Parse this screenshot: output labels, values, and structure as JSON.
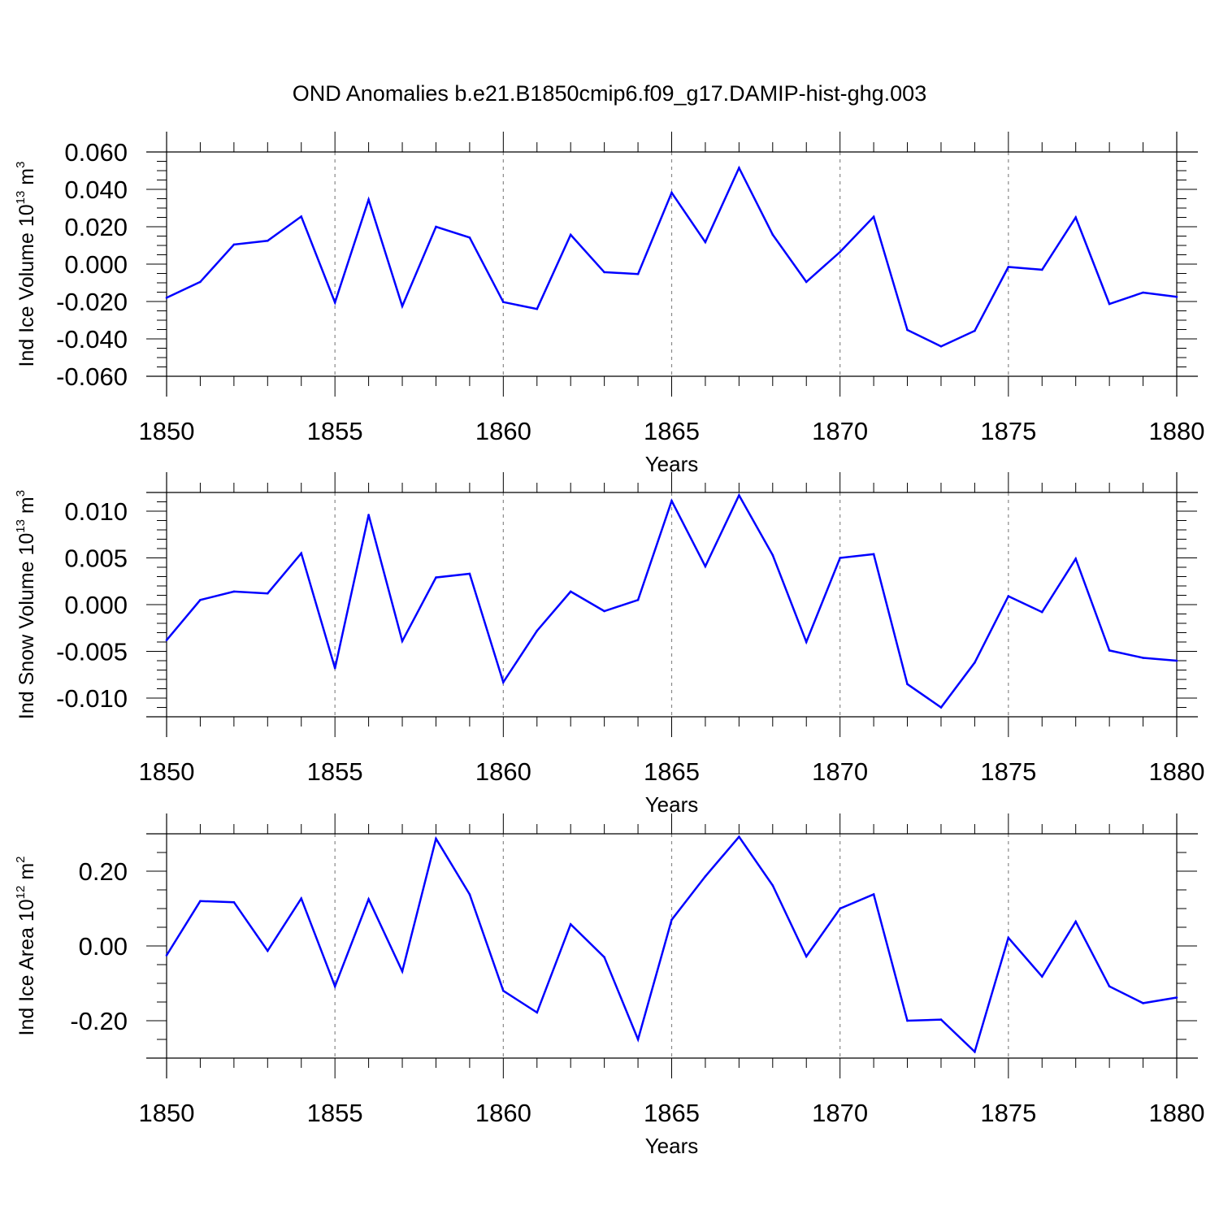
{
  "title": "OND Anomalies b.e21.B1850cmip6.f09_g17.DAMIP-hist-ghg.003",
  "line_color": "#0000ff",
  "chart_data": [
    {
      "type": "line",
      "ylabel_main": "Ind Ice Volume 10",
      "ylabel_exp": "13",
      "ylabel_unit": " m",
      "ylabel_unit_exp": "3",
      "xlabel": "Years",
      "xlim": [
        1850,
        1880
      ],
      "ylim": [
        -0.06,
        0.06
      ],
      "xticks": [
        1850,
        1855,
        1860,
        1865,
        1870,
        1875,
        1880
      ],
      "xtick_labels": [
        "1850",
        "1855",
        "1860",
        "1865",
        "1870",
        "1875",
        "1880"
      ],
      "yticks": [
        0.06,
        0.04,
        0.02,
        0.0,
        -0.02,
        -0.04,
        -0.06
      ],
      "ytick_labels": [
        "0.060",
        "0.040",
        "0.020",
        "0.000",
        "-0.020",
        "-0.040",
        "-0.060"
      ],
      "ymin_ticks": [
        -0.055,
        -0.05,
        -0.045,
        -0.035,
        -0.03,
        -0.025,
        -0.015,
        -0.01,
        -0.005,
        0.005,
        0.01,
        0.015,
        0.025,
        0.03,
        0.035,
        0.045,
        0.05,
        0.055
      ],
      "grid_x": [
        1855,
        1860,
        1865,
        1870,
        1875
      ],
      "x": [
        1850,
        1851,
        1852,
        1853,
        1854,
        1855,
        1856,
        1857,
        1858,
        1859,
        1860,
        1861,
        1862,
        1863,
        1864,
        1865,
        1866,
        1867,
        1868,
        1869,
        1870,
        1871,
        1872,
        1873,
        1874,
        1875,
        1876,
        1877,
        1878,
        1879,
        1880
      ],
      "y": [
        -0.018,
        -0.0095,
        0.0105,
        0.0125,
        0.0255,
        -0.0205,
        0.0345,
        -0.0225,
        0.02,
        0.0142,
        -0.0203,
        -0.024,
        0.0157,
        -0.0043,
        -0.0053,
        0.0382,
        0.0118,
        0.0515,
        0.0158,
        -0.0095,
        0.0065,
        0.0253,
        -0.0352,
        -0.044,
        -0.0357,
        -0.0015,
        -0.003,
        0.025,
        -0.0213,
        -0.0152,
        -0.0175
      ]
    },
    {
      "type": "line",
      "ylabel_main": "Ind Snow Volume 10",
      "ylabel_exp": "13",
      "ylabel_unit": " m",
      "ylabel_unit_exp": "3",
      "xlabel": "Years",
      "xlim": [
        1850,
        1880
      ],
      "ylim": [
        -0.012,
        0.012
      ],
      "xticks": [
        1850,
        1855,
        1860,
        1865,
        1870,
        1875,
        1880
      ],
      "xtick_labels": [
        "1850",
        "1855",
        "1860",
        "1865",
        "1870",
        "1875",
        "1880"
      ],
      "yticks": [
        0.01,
        0.005,
        0.0,
        -0.005,
        -0.01
      ],
      "ytick_labels": [
        "0.010",
        "0.005",
        "0.000",
        "-0.005",
        "-0.010"
      ],
      "ymin_ticks": [
        -0.011,
        -0.009,
        -0.008,
        -0.007,
        -0.006,
        -0.004,
        -0.003,
        -0.002,
        -0.001,
        0.001,
        0.002,
        0.003,
        0.004,
        0.006,
        0.007,
        0.008,
        0.009,
        0.011
      ],
      "grid_x": [
        1855,
        1860,
        1865,
        1870,
        1875
      ],
      "x": [
        1850,
        1851,
        1852,
        1853,
        1854,
        1855,
        1856,
        1857,
        1858,
        1859,
        1860,
        1861,
        1862,
        1863,
        1864,
        1865,
        1866,
        1867,
        1868,
        1869,
        1870,
        1871,
        1872,
        1873,
        1874,
        1875,
        1876,
        1877,
        1878,
        1879,
        1880
      ],
      "y": [
        -0.0038,
        0.0005,
        0.0014,
        0.0012,
        0.0055,
        -0.0068,
        0.0096,
        -0.0039,
        0.0029,
        0.0033,
        -0.0083,
        -0.0028,
        0.0014,
        -0.0007,
        0.0005,
        0.0111,
        0.0041,
        0.0117,
        0.0053,
        -0.004,
        0.005,
        0.0054,
        -0.0085,
        -0.011,
        -0.0062,
        0.0009,
        -0.0008,
        0.0049,
        -0.0049,
        -0.0057,
        -0.006
      ]
    },
    {
      "type": "line",
      "ylabel_main": "Ind Ice Area 10",
      "ylabel_exp": "12",
      "ylabel_unit": " m",
      "ylabel_unit_exp": "2",
      "xlabel": "Years",
      "xlim": [
        1850,
        1880
      ],
      "ylim": [
        -0.3,
        0.3
      ],
      "xticks": [
        1850,
        1855,
        1860,
        1865,
        1870,
        1875,
        1880
      ],
      "xtick_labels": [
        "1850",
        "1855",
        "1860",
        "1865",
        "1870",
        "1875",
        "1880"
      ],
      "yticks": [
        0.2,
        0.0,
        -0.2
      ],
      "ytick_labels": [
        "0.20",
        "0.00",
        "-0.20"
      ],
      "ymin_ticks": [
        -0.25,
        -0.15,
        -0.1,
        -0.05,
        0.05,
        0.1,
        0.15,
        0.25
      ],
      "grid_x": [
        1855,
        1860,
        1865,
        1870,
        1875
      ],
      "x": [
        1850,
        1851,
        1852,
        1853,
        1854,
        1855,
        1856,
        1857,
        1858,
        1859,
        1860,
        1861,
        1862,
        1863,
        1864,
        1865,
        1866,
        1867,
        1868,
        1869,
        1870,
        1871,
        1872,
        1873,
        1874,
        1875,
        1876,
        1877,
        1878,
        1879,
        1880
      ],
      "y": [
        -0.025,
        0.12,
        0.117,
        -0.013,
        0.127,
        -0.108,
        0.125,
        -0.068,
        0.287,
        0.138,
        -0.12,
        -0.178,
        0.058,
        -0.03,
        -0.25,
        0.07,
        0.186,
        0.292,
        0.162,
        -0.028,
        0.1,
        0.138,
        -0.2,
        -0.197,
        -0.283,
        0.022,
        -0.082,
        0.065,
        -0.108,
        -0.153,
        -0.138
      ]
    }
  ]
}
